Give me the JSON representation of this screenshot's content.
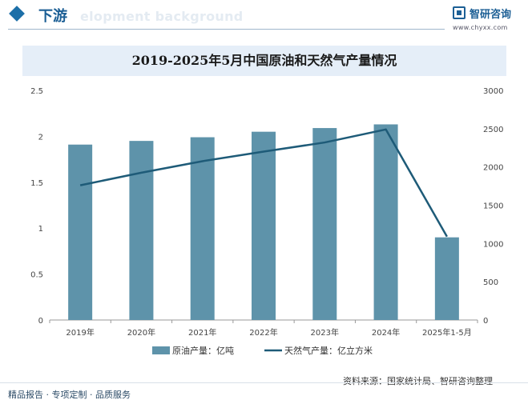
{
  "header": {
    "section_title": "下游",
    "bg_text": "elopment background",
    "logo_text": "智研咨询",
    "logo_url": "www.chyxx.com"
  },
  "chart_data": {
    "type": "bar",
    "title": "2019-2025年5月中国原油和天然气产量情况",
    "categories": [
      "2019年",
      "2020年",
      "2021年",
      "2022年",
      "2023年",
      "2024年",
      "2025年1-5月"
    ],
    "series": [
      {
        "name": "原油产量：亿吨",
        "type": "bar",
        "axis": "left",
        "color": "#5e93aa",
        "values": [
          1.91,
          1.95,
          1.99,
          2.05,
          2.09,
          2.13,
          0.9
        ]
      },
      {
        "name": "天然气产量：亿立方米",
        "type": "line",
        "axis": "right",
        "color": "#1e5b78",
        "values": [
          1760,
          1925,
          2075,
          2200,
          2320,
          2490,
          1090
        ]
      }
    ],
    "y_left": {
      "ticks": [
        "0",
        "0.5",
        "1",
        "1.5",
        "2",
        "2.5"
      ],
      "range": [
        0,
        2.5
      ]
    },
    "y_right": {
      "ticks": [
        "0",
        "500",
        "1000",
        "1500",
        "2000",
        "2500",
        "3000"
      ],
      "range": [
        0,
        3000
      ]
    },
    "grid": false,
    "legend_position": "bottom"
  },
  "footer": {
    "left": "精品报告 · 专项定制 · 品质服务",
    "source": "资料来源：国家统计局、智研咨询整理"
  }
}
